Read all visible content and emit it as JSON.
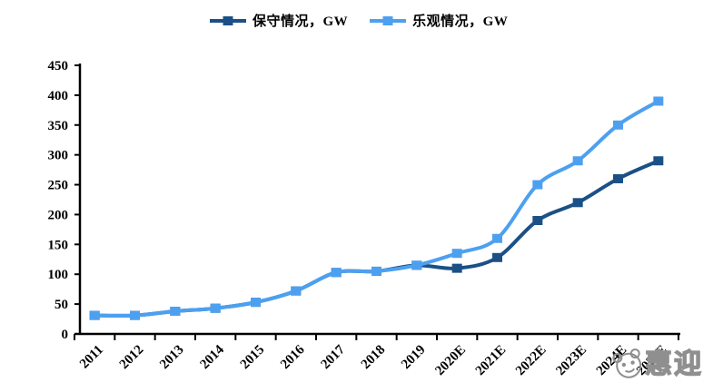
{
  "chart_data": {
    "type": "line",
    "title": "",
    "categories": [
      "2011",
      "2012",
      "2013",
      "2014",
      "2015",
      "2016",
      "2017",
      "2018",
      "2019",
      "2020E",
      "2021E",
      "2022E",
      "2023E",
      "2024E",
      "2025E"
    ],
    "series": [
      {
        "name": "保守情况，GW",
        "color": "#1B5087",
        "values": [
          31,
          31,
          38,
          43,
          53,
          72,
          103,
          105,
          115,
          110,
          128,
          190,
          220,
          260,
          290
        ]
      },
      {
        "name": "乐观情况，GW",
        "color": "#4DA0F0",
        "values": [
          31,
          31,
          38,
          43,
          53,
          72,
          103,
          105,
          115,
          135,
          160,
          250,
          290,
          350,
          390
        ]
      }
    ],
    "xlabel": "",
    "ylabel": "",
    "ylim": [
      0,
      450
    ],
    "yticks": [
      0,
      50,
      100,
      150,
      200,
      250,
      300,
      350,
      400,
      450
    ],
    "grid": false,
    "legend_position": "top-center",
    "axis_color": "#000000",
    "background": "#FFFFFF"
  },
  "watermark": {
    "text": "惠迎",
    "color": "#8F8F8F"
  }
}
